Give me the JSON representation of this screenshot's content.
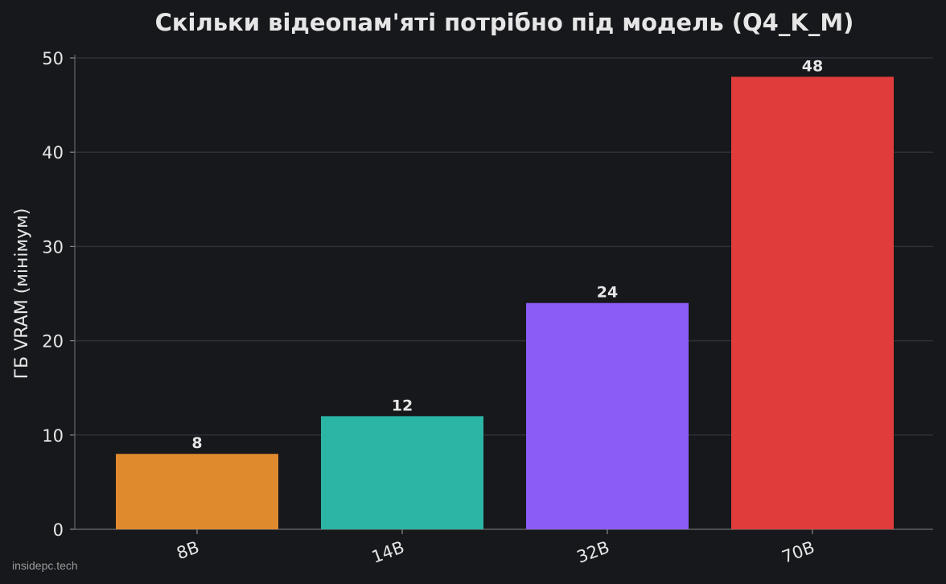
{
  "chart_data": {
    "type": "bar",
    "title": "Скільки відеопам'яті потрібно під модель (Q4_K_M)",
    "ylabel": "ГБ VRAM (мінімум)",
    "categories": [
      "8B",
      "14B",
      "32B",
      "70B"
    ],
    "values": [
      8,
      12,
      24,
      48
    ],
    "colors": [
      "#e08a2e",
      "#2bb5a5",
      "#8b5cf6",
      "#e03c3c"
    ],
    "ylim": [
      0,
      50
    ],
    "yticks": [
      0,
      10,
      20,
      30,
      40,
      50
    ],
    "grid": true,
    "watermark": "insidepc.tech"
  }
}
